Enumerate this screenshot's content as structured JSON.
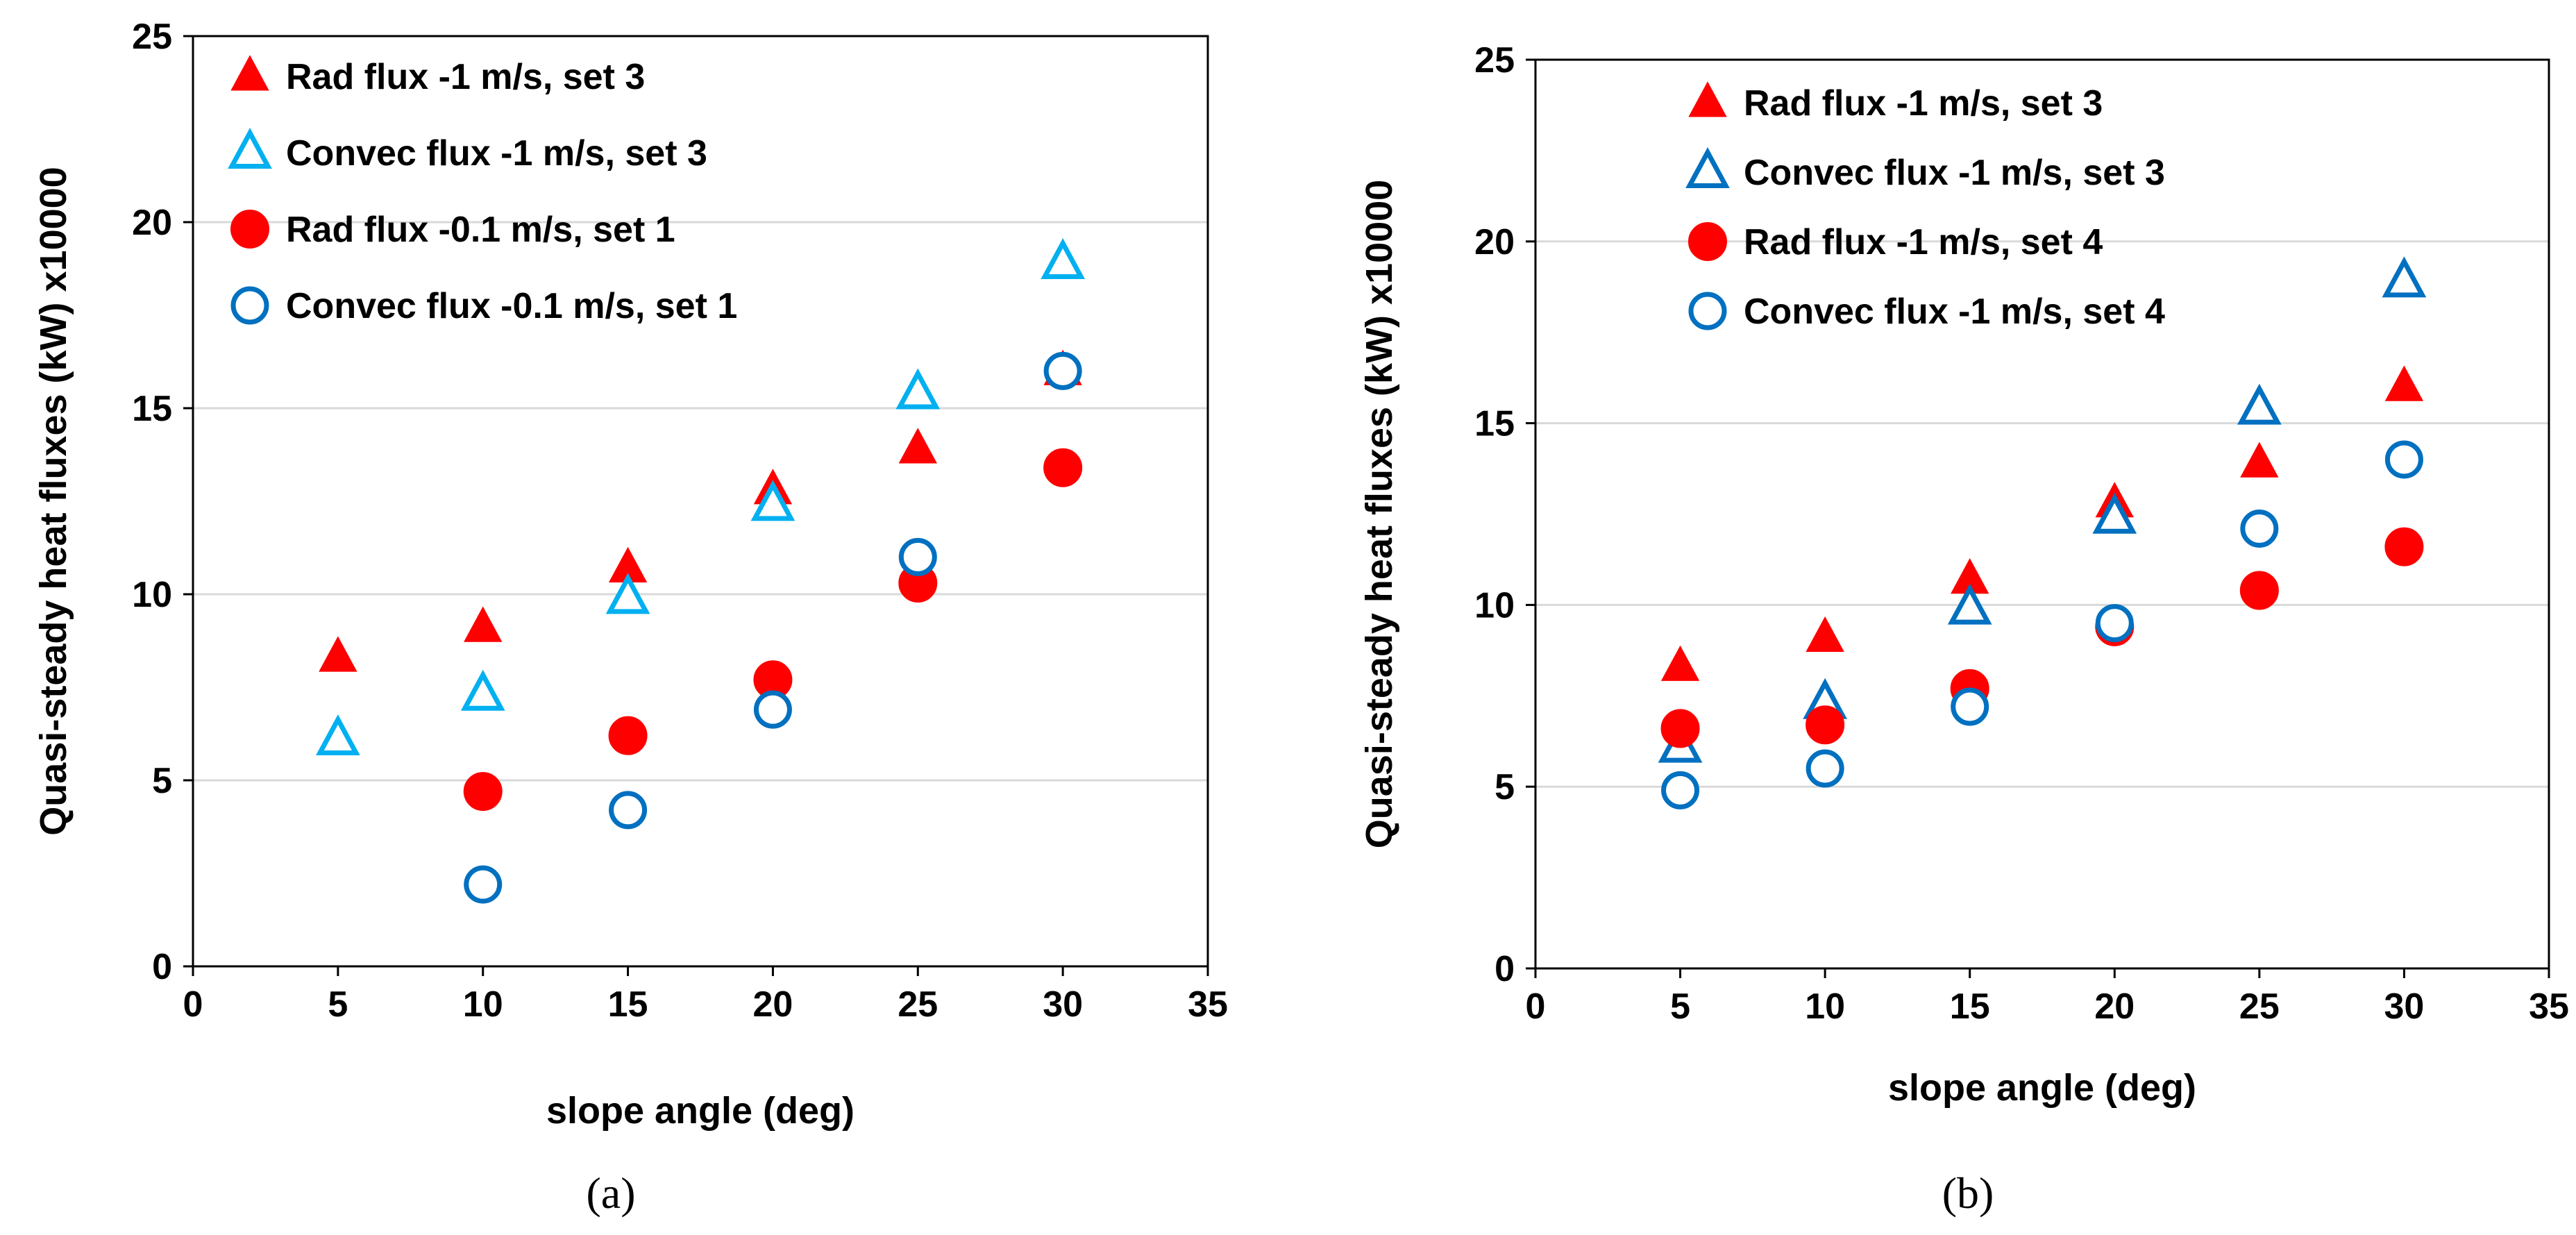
{
  "chart_data": [
    {
      "type": "scatter",
      "panel_label": "(a)",
      "title": "",
      "xlabel": "slope angle (deg)",
      "ylabel": "Quasi-steady heat fluxes (kW) x10000",
      "xlim": [
        0,
        35
      ],
      "ylim": [
        0,
        25
      ],
      "xticks": [
        0,
        5,
        10,
        15,
        20,
        25,
        30,
        35
      ],
      "yticks": [
        0,
        5,
        10,
        15,
        20,
        25
      ],
      "grid": "horizontal",
      "legend_position": "top-left",
      "series": [
        {
          "name": "Rad flux -1 m/s, set 3",
          "marker": "triangle",
          "filled": true,
          "color": "#ff0000",
          "x": [
            5,
            10,
            15,
            20,
            25,
            30
          ],
          "y": [
            8.3,
            9.1,
            10.7,
            12.8,
            13.9,
            16.0
          ]
        },
        {
          "name": "Convec flux -1 m/s, set 3",
          "marker": "triangle",
          "filled": false,
          "color": "#00b0f0",
          "x": [
            5,
            10,
            15,
            20,
            25,
            30
          ],
          "y": [
            6.1,
            7.3,
            9.9,
            12.4,
            15.4,
            18.9
          ]
        },
        {
          "name": "Rad flux -0.1 m/s, set 1",
          "marker": "circle",
          "filled": true,
          "color": "#ff0000",
          "x": [
            10,
            15,
            20,
            25,
            30
          ],
          "y": [
            4.7,
            6.2,
            7.7,
            10.3,
            13.4
          ]
        },
        {
          "name": "Convec flux -0.1 m/s, set 1",
          "marker": "circle",
          "filled": false,
          "color": "#0070c0",
          "x": [
            10,
            15,
            20,
            25,
            30
          ],
          "y": [
            2.2,
            4.2,
            6.9,
            11.0,
            16.0
          ]
        }
      ]
    },
    {
      "type": "scatter",
      "panel_label": "(b)",
      "title": "",
      "xlabel": "slope angle (deg)",
      "ylabel": "Quasi-steady heat fluxes (kW) x10000",
      "xlim": [
        0,
        35
      ],
      "ylim": [
        0,
        25
      ],
      "xticks": [
        0,
        5,
        10,
        15,
        20,
        25,
        30,
        35
      ],
      "yticks": [
        0,
        5,
        10,
        15,
        20,
        25
      ],
      "grid": "horizontal",
      "legend_position": "top-center",
      "series": [
        {
          "name": "Rad flux -1 m/s, set 3",
          "marker": "triangle",
          "filled": true,
          "color": "#ff0000",
          "x": [
            5,
            10,
            15,
            20,
            25,
            30
          ],
          "y": [
            8.3,
            9.1,
            10.7,
            12.8,
            13.9,
            16.0
          ]
        },
        {
          "name": "Convec flux -1 m/s, set 3",
          "marker": "triangle",
          "filled": false,
          "color": "#0070c0",
          "x": [
            5,
            10,
            15,
            20,
            25,
            30
          ],
          "y": [
            6.1,
            7.3,
            9.9,
            12.4,
            15.4,
            18.9
          ]
        },
        {
          "name": "Rad flux -1 m/s, set 4",
          "marker": "circle",
          "filled": true,
          "color": "#ff0000",
          "x": [
            5,
            10,
            15,
            20,
            25,
            30
          ],
          "y": [
            6.6,
            6.7,
            7.7,
            9.4,
            10.4,
            11.6
          ]
        },
        {
          "name": "Convec flux -1 m/s, set 4",
          "marker": "circle",
          "filled": false,
          "color": "#0070c0",
          "x": [
            5,
            10,
            15,
            20,
            25,
            30
          ],
          "y": [
            4.9,
            5.5,
            7.2,
            9.5,
            12.1,
            14.0
          ]
        }
      ]
    }
  ]
}
